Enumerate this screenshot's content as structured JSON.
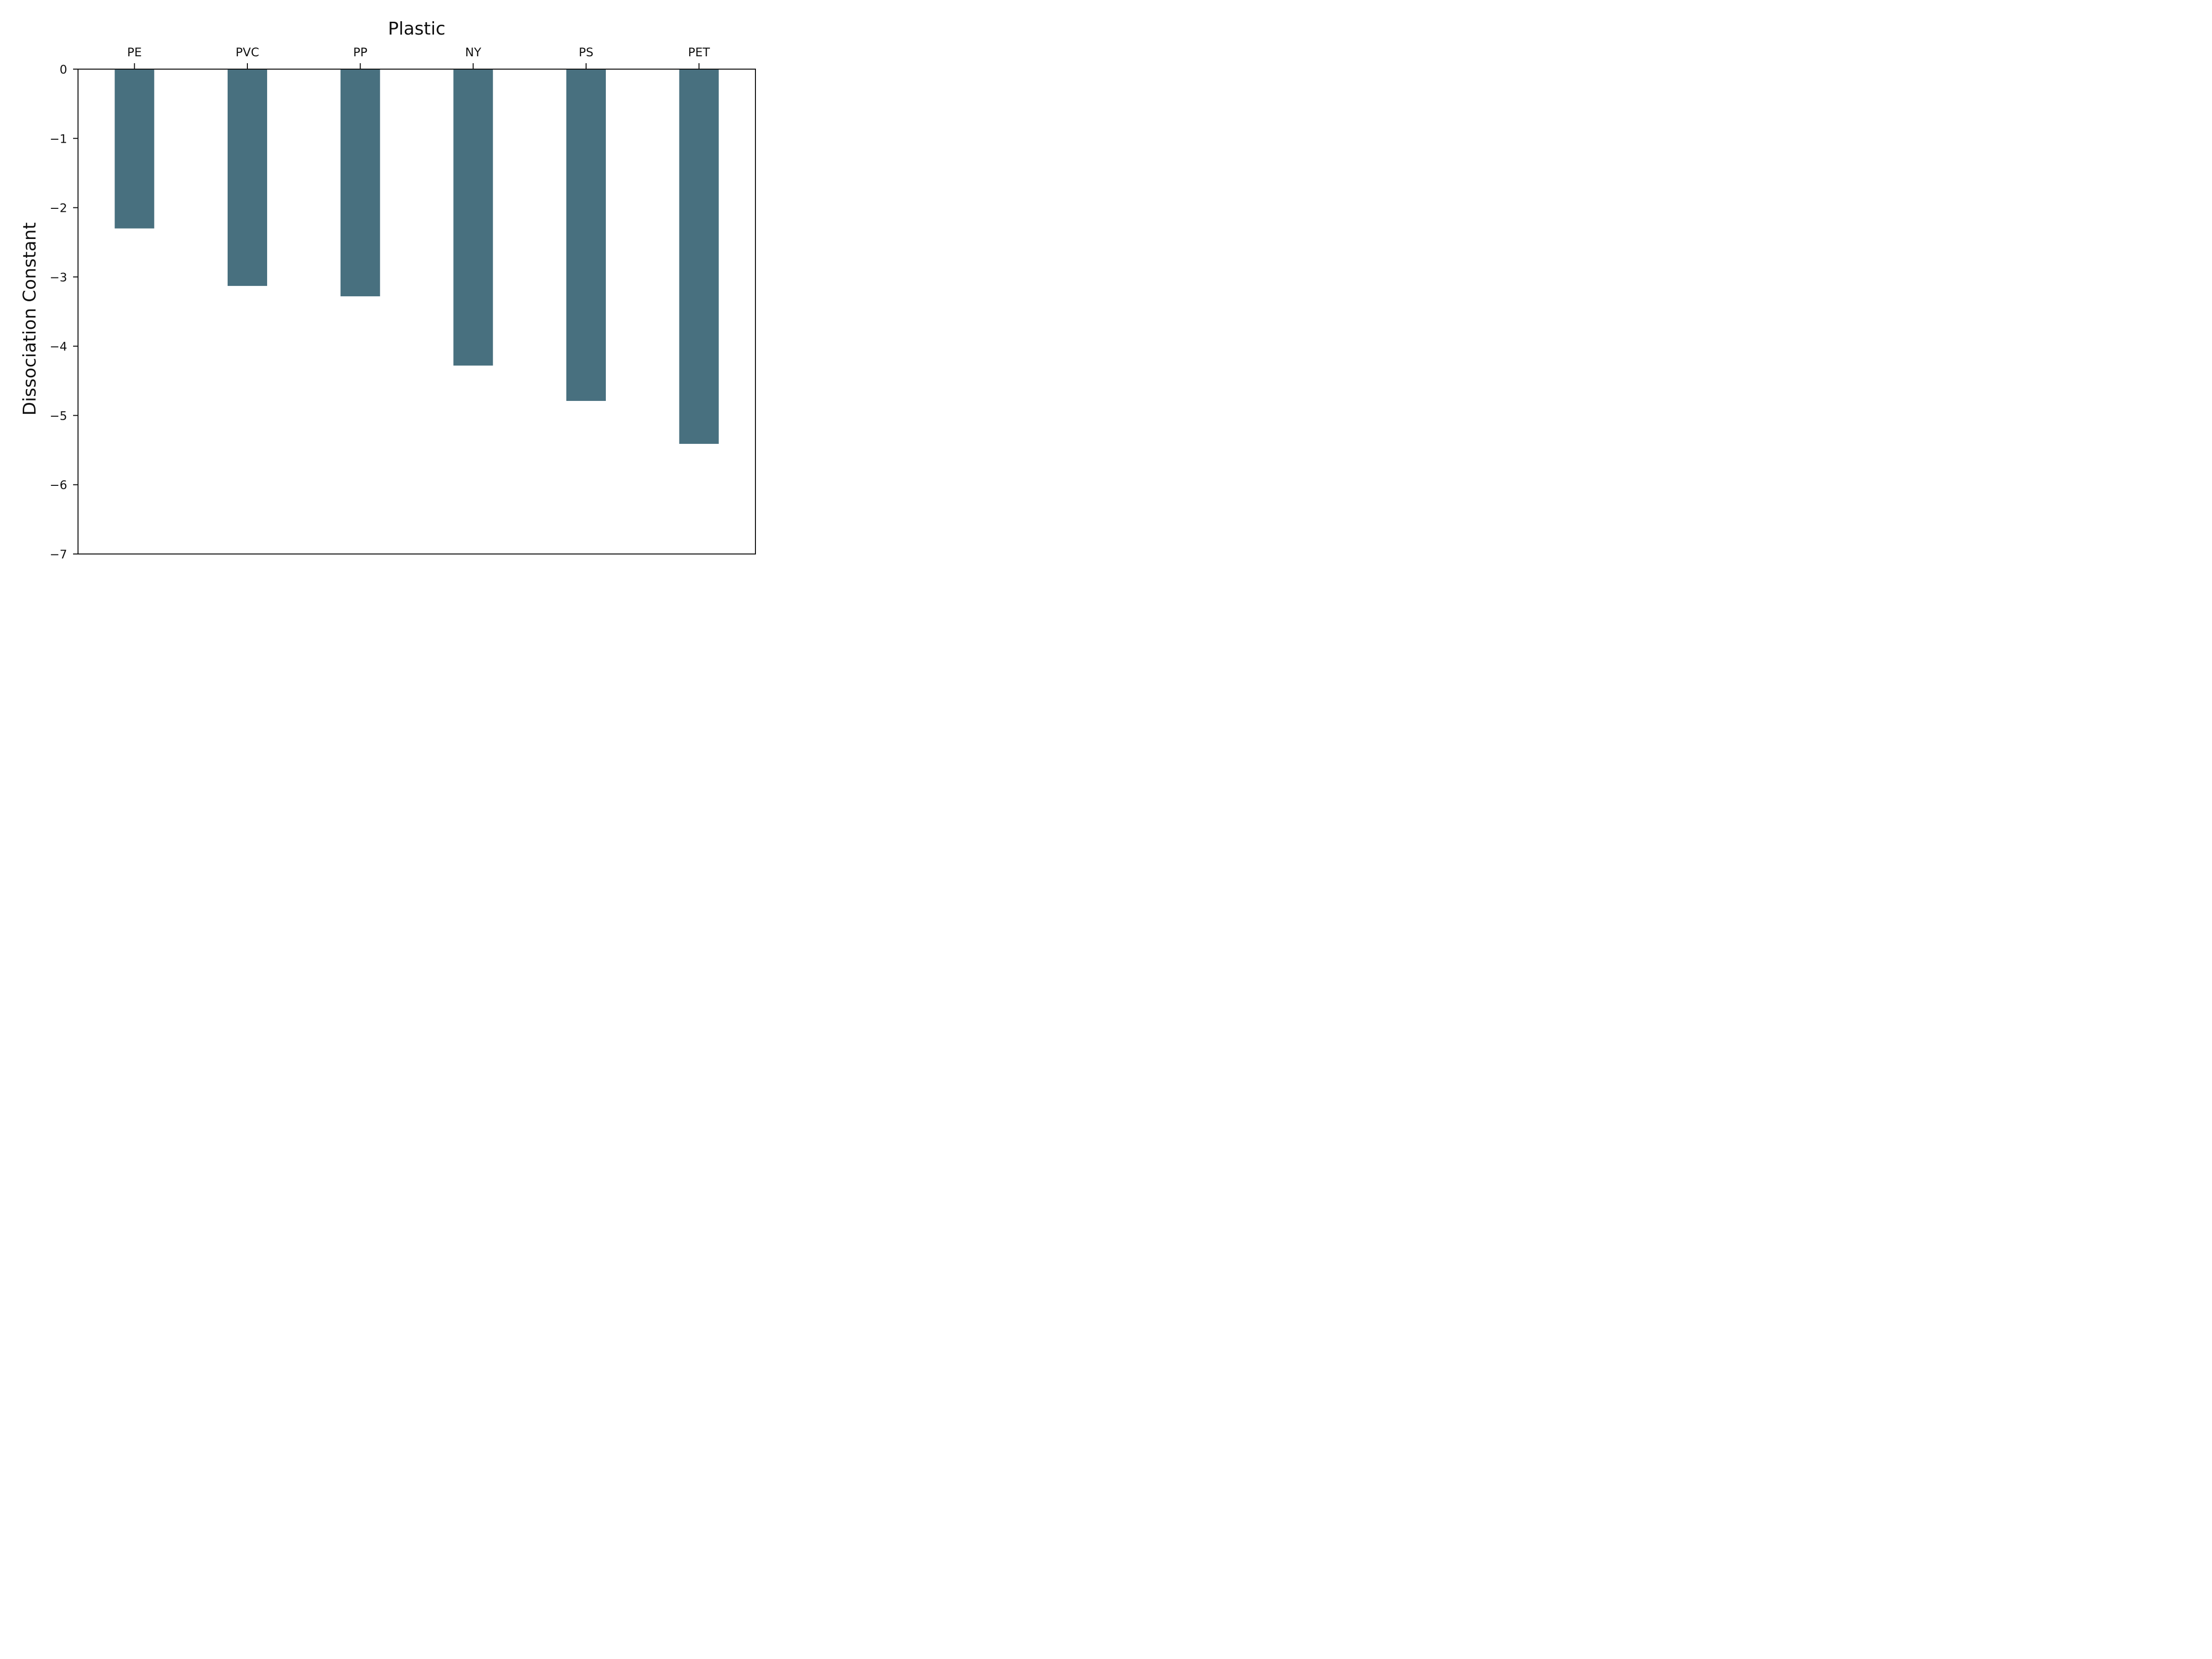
{
  "chart_data": {
    "type": "bar",
    "title": "",
    "xlabel": "Plastic",
    "ylabel": "Dissociation Constant",
    "categories": [
      "PE",
      "PVC",
      "PP",
      "NY",
      "PS",
      "PET"
    ],
    "values": [
      -2.3,
      -3.13,
      -3.28,
      -4.28,
      -4.79,
      -5.41
    ],
    "ylim": [
      -7,
      0
    ],
    "yticks": [
      0,
      -1,
      -2,
      -3,
      -4,
      -5,
      -6,
      -7
    ],
    "ytick_labels": [
      "0",
      "−1",
      "−2",
      "−3",
      "−4",
      "−5",
      "−6",
      "−7"
    ],
    "x_axis_position": "top",
    "grid": false,
    "legend": "none",
    "bar_color": "#48707f"
  }
}
